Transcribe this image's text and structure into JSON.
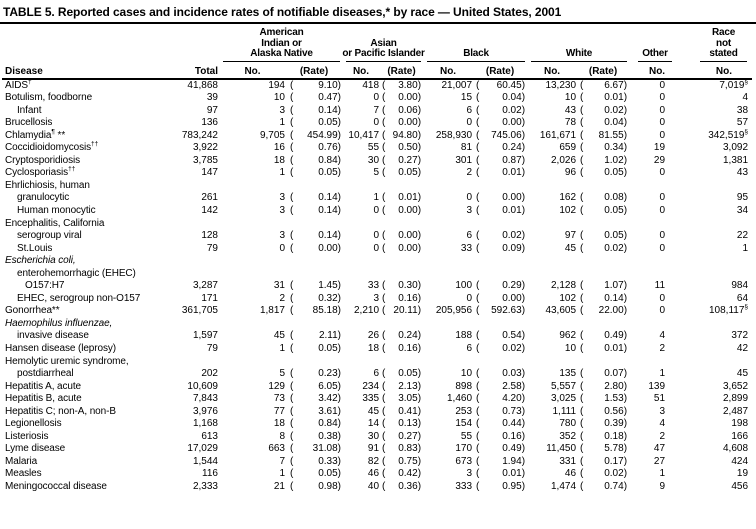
{
  "title": "TABLE 5. Reported cases and incidence rates of notifiable diseases,* by race — United States, 2001",
  "table": {
    "col_headers": {
      "disease": "Disease",
      "total": "Total",
      "no": "No.",
      "rate": "(Rate)",
      "groups": {
        "aian": [
          "American",
          "Indian or",
          "Alaska Native"
        ],
        "api": [
          "Asian",
          "or Pacific Islander"
        ],
        "black": [
          "Black"
        ],
        "white": [
          "White"
        ],
        "other": [
          "Other"
        ],
        "race_not_stated": [
          "Race",
          "not",
          "stated"
        ]
      }
    },
    "rows": [
      {
        "indent": 0,
        "label": "AIDS",
        "sup": "†",
        "total": "41,868",
        "aian_no": "194",
        "aian_rate": "9.10",
        "api_no": "418",
        "api_rate": "3.80",
        "black_no": "21,007",
        "black_rate": "60.45",
        "white_no": "13,230",
        "white_rate": "6.67",
        "other": "0",
        "rns": "7,019",
        "rns_sup": "§"
      },
      {
        "indent": 0,
        "label": "Botulism, foodborne",
        "total": "39",
        "aian_no": "10",
        "aian_rate": "0.47",
        "api_no": "0",
        "api_rate": "0.00",
        "black_no": "15",
        "black_rate": "0.04",
        "white_no": "10",
        "white_rate": "0.01",
        "other": "0",
        "rns": "4"
      },
      {
        "indent": 1,
        "label": "Infant",
        "total": "97",
        "aian_no": "3",
        "aian_rate": "0.14",
        "api_no": "7",
        "api_rate": "0.06",
        "black_no": "6",
        "black_rate": "0.02",
        "white_no": "43",
        "white_rate": "0.02",
        "other": "0",
        "rns": "38"
      },
      {
        "indent": 0,
        "label": "Brucellosis",
        "total": "136",
        "aian_no": "1",
        "aian_rate": "0.05",
        "api_no": "0",
        "api_rate": "0.00",
        "black_no": "0",
        "black_rate": "0.00",
        "white_no": "78",
        "white_rate": "0.04",
        "other": "0",
        "rns": "57"
      },
      {
        "indent": 0,
        "label": "Chlamydia",
        "sup": "¶",
        "post": " **",
        "total": "783,242",
        "aian_no": "9,705",
        "aian_rate": "454.99",
        "api_no": "10,417",
        "api_rate": "94.80",
        "black_no": "258,930",
        "black_rate": "745.06",
        "white_no": "161,671",
        "white_rate": "81.55",
        "other": "0",
        "rns": "342,519",
        "rns_sup": "§"
      },
      {
        "indent": 0,
        "label": "Coccidioidomycosis",
        "sup": "††",
        "total": "3,922",
        "aian_no": "16",
        "aian_rate": "0.76",
        "api_no": "55",
        "api_rate": "0.50",
        "black_no": "81",
        "black_rate": "0.24",
        "white_no": "659",
        "white_rate": "0.34",
        "other": "19",
        "rns": "3,092"
      },
      {
        "indent": 0,
        "label": "Cryptosporidiosis",
        "total": "3,785",
        "aian_no": "18",
        "aian_rate": "0.84",
        "api_no": "30",
        "api_rate": "0.27",
        "black_no": "301",
        "black_rate": "0.87",
        "white_no": "2,026",
        "white_rate": "1.02",
        "other": "29",
        "rns": "1,381"
      },
      {
        "indent": 0,
        "label": "Cyclosporiasis",
        "sup": "††",
        "total": "147",
        "aian_no": "1",
        "aian_rate": "0.05",
        "api_no": "5",
        "api_rate": "0.05",
        "black_no": "2",
        "black_rate": "0.01",
        "white_no": "96",
        "white_rate": "0.05",
        "other": "0",
        "rns": "43"
      },
      {
        "indent": 0,
        "label": "Ehrlichiosis, human"
      },
      {
        "indent": 1,
        "label": "granulocytic",
        "total": "261",
        "aian_no": "3",
        "aian_rate": "0.14",
        "api_no": "1",
        "api_rate": "0.01",
        "black_no": "0",
        "black_rate": "0.00",
        "white_no": "162",
        "white_rate": "0.08",
        "other": "0",
        "rns": "95"
      },
      {
        "indent": 1,
        "label": "Human monocytic",
        "total": "142",
        "aian_no": "3",
        "aian_rate": "0.14",
        "api_no": "0",
        "api_rate": "0.00",
        "black_no": "3",
        "black_rate": "0.01",
        "white_no": "102",
        "white_rate": "0.05",
        "other": "0",
        "rns": "34"
      },
      {
        "indent": 0,
        "label": "Encephalitis, California"
      },
      {
        "indent": 1,
        "label": "serogroup viral",
        "total": "128",
        "aian_no": "3",
        "aian_rate": "0.14",
        "api_no": "0",
        "api_rate": "0.00",
        "black_no": "6",
        "black_rate": "0.02",
        "white_no": "97",
        "white_rate": "0.05",
        "other": "0",
        "rns": "22"
      },
      {
        "indent": 1,
        "label": "St.Louis",
        "total": "79",
        "aian_no": "0",
        "aian_rate": "0.00",
        "api_no": "0",
        "api_rate": "0.00",
        "black_no": "33",
        "black_rate": "0.09",
        "white_no": "45",
        "white_rate": "0.02",
        "other": "0",
        "rns": "1"
      },
      {
        "indent": 0,
        "label": "Escherichia coli,",
        "italic": true
      },
      {
        "indent": 1,
        "label": "enterohemorrhagic (EHEC)"
      },
      {
        "indent": 2,
        "label": "O157:H7",
        "total": "3,287",
        "aian_no": "31",
        "aian_rate": "1.45",
        "api_no": "33",
        "api_rate": "0.30",
        "black_no": "100",
        "black_rate": "0.29",
        "white_no": "2,128",
        "white_rate": "1.07",
        "other": "11",
        "rns": "984"
      },
      {
        "indent": 1,
        "label": "EHEC, serogroup non-O157",
        "total": "171",
        "aian_no": "2",
        "aian_rate": "0.32",
        "api_no": "3",
        "api_rate": "0.16",
        "black_no": "0",
        "black_rate": "0.00",
        "white_no": "102",
        "white_rate": "0.14",
        "other": "0",
        "rns": "64"
      },
      {
        "indent": 0,
        "label": "Gonorrhea**",
        "total": "361,705",
        "aian_no": "1,817",
        "aian_rate": "85.18",
        "api_no": "2,210",
        "api_rate": "20.11",
        "black_no": "205,956",
        "black_rate": "592.63",
        "white_no": "43,605",
        "white_rate": "22.00",
        "other": "0",
        "rns": "108,117",
        "rns_sup": "§"
      },
      {
        "indent": 0,
        "label": "Haemophilus influenzae,",
        "italic": true
      },
      {
        "indent": 1,
        "label": "invasive disease",
        "total": "1,597",
        "aian_no": "45",
        "aian_rate": "2.11",
        "api_no": "26",
        "api_rate": "0.24",
        "black_no": "188",
        "black_rate": "0.54",
        "white_no": "962",
        "white_rate": "0.49",
        "other": "4",
        "rns": "372"
      },
      {
        "indent": 0,
        "label": "Hansen disease (leprosy)",
        "total": "79",
        "aian_no": "1",
        "aian_rate": "0.05",
        "api_no": "18",
        "api_rate": "0.16",
        "black_no": "6",
        "black_rate": "0.02",
        "white_no": "10",
        "white_rate": "0.01",
        "other": "2",
        "rns": "42"
      },
      {
        "indent": 0,
        "label": "Hemolytic uremic syndrome,"
      },
      {
        "indent": 1,
        "label": "postdiarrheal",
        "total": "202",
        "aian_no": "5",
        "aian_rate": "0.23",
        "api_no": "6",
        "api_rate": "0.05",
        "black_no": "10",
        "black_rate": "0.03",
        "white_no": "135",
        "white_rate": "0.07",
        "other": "1",
        "rns": "45"
      },
      {
        "indent": 0,
        "label": "Hepatitis A, acute",
        "total": "10,609",
        "aian_no": "129",
        "aian_rate": "6.05",
        "api_no": "234",
        "api_rate": "2.13",
        "black_no": "898",
        "black_rate": "2.58",
        "white_no": "5,557",
        "white_rate": "2.80",
        "other": "139",
        "rns": "3,652"
      },
      {
        "indent": 0,
        "label": "Hepatitis B, acute",
        "total": "7,843",
        "aian_no": "73",
        "aian_rate": "3.42",
        "api_no": "335",
        "api_rate": "3.05",
        "black_no": "1,460",
        "black_rate": "4.20",
        "white_no": "3,025",
        "white_rate": "1.53",
        "other": "51",
        "rns": "2,899"
      },
      {
        "indent": 0,
        "label": "Hepatitis C; non-A, non-B",
        "total": "3,976",
        "aian_no": "77",
        "aian_rate": "3.61",
        "api_no": "45",
        "api_rate": "0.41",
        "black_no": "253",
        "black_rate": "0.73",
        "white_no": "1,111",
        "white_rate": "0.56",
        "other": "3",
        "rns": "2,487"
      },
      {
        "indent": 0,
        "label": "Legionellosis",
        "total": "1,168",
        "aian_no": "18",
        "aian_rate": "0.84",
        "api_no": "14",
        "api_rate": "0.13",
        "black_no": "154",
        "black_rate": "0.44",
        "white_no": "780",
        "white_rate": "0.39",
        "other": "4",
        "rns": "198"
      },
      {
        "indent": 0,
        "label": "Listeriosis",
        "total": "613",
        "aian_no": "8",
        "aian_rate": "0.38",
        "api_no": "30",
        "api_rate": "0.27",
        "black_no": "55",
        "black_rate": "0.16",
        "white_no": "352",
        "white_rate": "0.18",
        "other": "2",
        "rns": "166"
      },
      {
        "indent": 0,
        "label": "Lyme disease",
        "total": "17,029",
        "aian_no": "663",
        "aian_rate": "31.08",
        "api_no": "91",
        "api_rate": "0.83",
        "black_no": "170",
        "black_rate": "0.49",
        "white_no": "11,450",
        "white_rate": "5.78",
        "other": "47",
        "rns": "4,608"
      },
      {
        "indent": 0,
        "label": "Malaria",
        "total": "1,544",
        "aian_no": "7",
        "aian_rate": "0.33",
        "api_no": "82",
        "api_rate": "0.75",
        "black_no": "673",
        "black_rate": "1.94",
        "white_no": "331",
        "white_rate": "0.17",
        "other": "27",
        "rns": "424"
      },
      {
        "indent": 0,
        "label": "Measles",
        "total": "116",
        "aian_no": "1",
        "aian_rate": "0.05",
        "api_no": "46",
        "api_rate": "0.42",
        "black_no": "3",
        "black_rate": "0.01",
        "white_no": "46",
        "white_rate": "0.02",
        "other": "1",
        "rns": "19"
      },
      {
        "indent": 0,
        "label": "Meningococcal disease",
        "total": "2,333",
        "aian_no": "21",
        "aian_rate": "0.98",
        "api_no": "40",
        "api_rate": "0.36",
        "black_no": "333",
        "black_rate": "0.95",
        "white_no": "1,474",
        "white_rate": "0.74",
        "other": "9",
        "rns": "456"
      }
    ]
  }
}
